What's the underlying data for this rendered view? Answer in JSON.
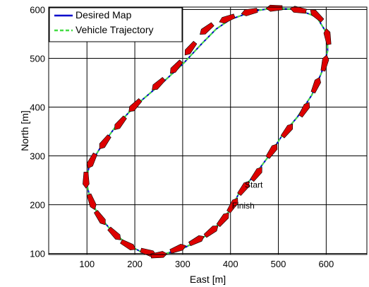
{
  "chart_data": {
    "type": "line",
    "xlabel": "East [m]",
    "ylabel": "North [m]",
    "xlim": [
      20,
      685
    ],
    "ylim": [
      98,
      605
    ],
    "xticks": [
      100,
      200,
      300,
      400,
      500,
      600
    ],
    "yticks": [
      100,
      200,
      300,
      400,
      500,
      600
    ],
    "grid": true,
    "legend": {
      "placement": "top-left",
      "entries": [
        {
          "label": "Desired Map",
          "color": "#0000cc",
          "style": "solid"
        },
        {
          "label": "Vehicle Trajectory",
          "color": "#44dd44",
          "style": "dashed"
        }
      ]
    },
    "series": [
      {
        "name": "Desired Map",
        "color": "#0000cc",
        "points": [
          [
            420,
            228
          ],
          [
            450,
            260
          ],
          [
            480,
            300
          ],
          [
            510,
            345
          ],
          [
            540,
            380
          ],
          [
            570,
            425
          ],
          [
            590,
            470
          ],
          [
            603,
            515
          ],
          [
            602,
            550
          ],
          [
            580,
            585
          ],
          [
            540,
            600
          ],
          [
            490,
            603
          ],
          [
            450,
            597
          ],
          [
            400,
            580
          ],
          [
            370,
            560
          ],
          [
            340,
            530
          ],
          [
            300,
            488
          ],
          [
            260,
            452
          ],
          [
            200,
            402
          ],
          [
            160,
            360
          ],
          [
            130,
            320
          ],
          [
            105,
            280
          ],
          [
            98,
            250
          ],
          [
            106,
            215
          ],
          [
            123,
            180
          ],
          [
            150,
            148
          ],
          [
            185,
            118
          ],
          [
            220,
            100
          ],
          [
            255,
            97
          ],
          [
            300,
            110
          ],
          [
            340,
            130
          ],
          [
            370,
            155
          ],
          [
            400,
            190
          ],
          [
            420,
            228
          ]
        ]
      },
      {
        "name": "Vehicle Trajectory",
        "color": "#44dd44",
        "points": [
          [
            420,
            228
          ],
          [
            450,
            260
          ],
          [
            480,
            300
          ],
          [
            510,
            345
          ],
          [
            540,
            380
          ],
          [
            570,
            425
          ],
          [
            590,
            470
          ],
          [
            603,
            515
          ],
          [
            602,
            550
          ],
          [
            580,
            585
          ],
          [
            540,
            600
          ],
          [
            490,
            603
          ],
          [
            450,
            597
          ],
          [
            400,
            580
          ],
          [
            370,
            560
          ],
          [
            340,
            530
          ],
          [
            300,
            488
          ],
          [
            260,
            452
          ],
          [
            200,
            402
          ],
          [
            160,
            360
          ],
          [
            130,
            320
          ],
          [
            105,
            280
          ],
          [
            98,
            250
          ],
          [
            106,
            215
          ],
          [
            123,
            180
          ],
          [
            150,
            148
          ],
          [
            185,
            118
          ],
          [
            220,
            100
          ],
          [
            255,
            97
          ],
          [
            300,
            110
          ],
          [
            340,
            130
          ],
          [
            370,
            155
          ],
          [
            400,
            190
          ],
          [
            420,
            228
          ]
        ]
      }
    ],
    "markers": {
      "color": "#dd0000",
      "points": [
        [
          428,
          234
        ],
        [
          455,
          263
        ],
        [
          487,
          310
        ],
        [
          519,
          352
        ],
        [
          555,
          395
        ],
        [
          579,
          445
        ],
        [
          597,
          490
        ],
        [
          603,
          544
        ],
        [
          580,
          588
        ],
        [
          542,
          599
        ],
        [
          492,
          603
        ],
        [
          440,
          595
        ],
        [
          393,
          581
        ],
        [
          350,
          560
        ],
        [
          316,
          520
        ],
        [
          286,
          482
        ],
        [
          249,
          447
        ],
        [
          200,
          403
        ],
        [
          169,
          367
        ],
        [
          137,
          328
        ],
        [
          110,
          290
        ],
        [
          98,
          251
        ],
        [
          110,
          206
        ],
        [
          128,
          173
        ],
        [
          158,
          140
        ],
        [
          186,
          117
        ],
        [
          228,
          102
        ],
        [
          250,
          97
        ],
        [
          290,
          110
        ],
        [
          329,
          127
        ],
        [
          360,
          146
        ],
        [
          385,
          170
        ],
        [
          405,
          199
        ]
      ]
    },
    "annotations": [
      {
        "text": "Start",
        "x": 430,
        "y": 235
      },
      {
        "text": "Finish",
        "x": 403,
        "y": 192
      }
    ]
  }
}
